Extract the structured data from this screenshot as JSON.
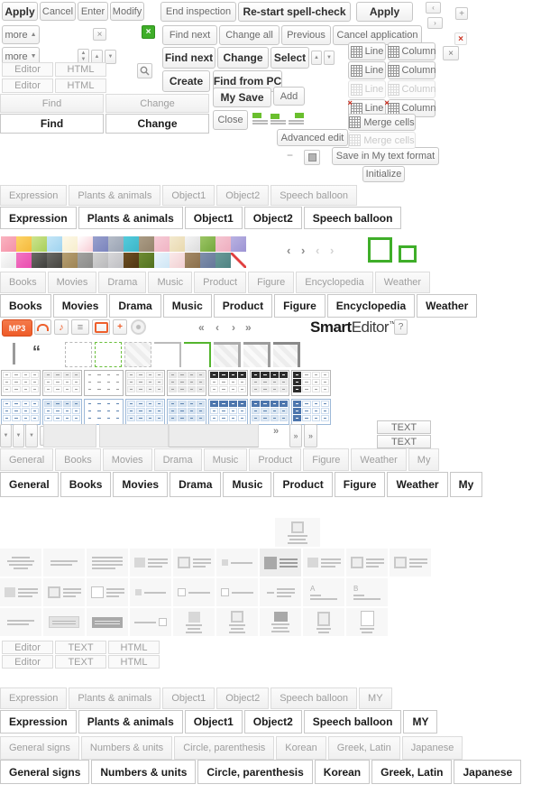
{
  "buttons": {
    "apply": "Apply",
    "cancel": "Cancel",
    "enter": "Enter",
    "modify": "Modify",
    "more": "more",
    "end_inspection": "End inspection",
    "restart_spellcheck": "Re-start spell-check",
    "find_next": "Find next",
    "change_all": "Change all",
    "previous": "Previous",
    "cancel_application": "Cancel application",
    "change": "Change",
    "select": "Select",
    "create": "Create",
    "find_from_pc": "Find from PC",
    "my_save": "My Save",
    "add": "Add",
    "close": "Close",
    "advanced_edit": "Advanced edit",
    "save_my_text": "Save in My text format",
    "initialize": "Initialize",
    "text": "TEXT"
  },
  "table_ops": {
    "line": "Line",
    "column": "Column",
    "merge": "Merge cells"
  },
  "editor_tabs": {
    "editor": "Editor",
    "html": "HTML",
    "text": "TEXT"
  },
  "find_change": {
    "items": [
      "Find",
      "Change"
    ]
  },
  "editor_text_html": {
    "items": [
      "Editor",
      "TEXT",
      "HTML"
    ]
  },
  "tabs_sticker": {
    "items": [
      "Expression",
      "Plants & animals",
      "Object1",
      "Object2",
      "Speech balloon"
    ]
  },
  "tabs_sticker_my": {
    "items": [
      "Expression",
      "Plants & animals",
      "Object1",
      "Object2",
      "Speech balloon",
      "MY"
    ]
  },
  "tabs_media": {
    "items": [
      "Books",
      "Movies",
      "Drama",
      "Music",
      "Product",
      "Figure",
      "Encyclopedia",
      "Weather"
    ]
  },
  "tabs_media_my": {
    "items": [
      "General",
      "Books",
      "Movies",
      "Drama",
      "Music",
      "Product",
      "Figure",
      "Weather",
      "My"
    ]
  },
  "tabs_chars": {
    "items": [
      "General signs",
      "Numbers & units",
      "Circle, parenthesis",
      "Korean",
      "Greek, Latin",
      "Japanese"
    ]
  },
  "logo": {
    "brand_bold": "Smart",
    "brand_rest": "Editor",
    "tm": "™",
    "help": "?"
  },
  "media_bar": {
    "mp3": "MP3"
  },
  "layout_labels": {
    "A": "A",
    "B": "B"
  },
  "icons": {
    "close_x": "×",
    "green_x": "×",
    "red_x": "×",
    "boxed_x": "×",
    "plus": "+",
    "minus": "−",
    "up": "▲",
    "down": "▼",
    "prev": "‹",
    "next": "›",
    "first": "«",
    "last": "»",
    "quote": "“"
  },
  "accent_colors": {
    "orange": "#ee5f2c",
    "green": "#3fae29",
    "red": "#cc3322",
    "blue": "#4d76ad"
  },
  "palette": {
    "row1": [
      {
        "a": "#f9b4c0",
        "b": "#f590a8"
      },
      {
        "a": "#fcd468",
        "b": "#f5b93c"
      },
      {
        "a": "#cde48f",
        "b": "#a8cf5a"
      },
      {
        "a": "#c5e6f7",
        "b": "#9fd3ef"
      },
      {
        "a": "#fdf8e8",
        "b": "#f7eecd"
      },
      {
        "a": "#ffffff",
        "b": "#f8ccd4"
      },
      {
        "a": "#98a0cd",
        "b": "#7b84bd"
      },
      {
        "a": "#b6bdc9",
        "b": "#9aa3b3"
      },
      {
        "a": "#53cbdc",
        "b": "#3db6c8"
      },
      {
        "a": "#ab9c85",
        "b": "#94846c"
      },
      {
        "a": "#f6ccd6",
        "b": "#f0b4c4"
      },
      {
        "a": "#f3e9cf",
        "b": "#e9d9ae"
      },
      {
        "a": "#f4f4f4",
        "b": "#dcdcdc"
      },
      {
        "a": "#9cc565",
        "b": "#74a83e"
      },
      {
        "a": "#f5c6d2",
        "b": "#eeaebf"
      },
      {
        "a": "#b9b2e2",
        "b": "#9d94d4"
      }
    ],
    "row2": [
      {
        "a": "#fbfbfb",
        "b": "#e6e6e6"
      },
      {
        "a": "#f277c3",
        "b": "#ea4caf"
      },
      {
        "a": "#6c6c68",
        "b": "#3f3f3c"
      },
      {
        "a": "#6a6a66",
        "b": "#45443f"
      },
      {
        "a": "#b7a072",
        "b": "#9d8455"
      },
      {
        "a": "#a3a3a1",
        "b": "#8b8b89"
      },
      {
        "a": "#d3d3d3",
        "b": "#b9b9bb"
      },
      {
        "a": "#d8d8da",
        "b": "#bfbfc3"
      },
      {
        "a": "#6f5024",
        "b": "#4e3612"
      },
      {
        "a": "#6f8c33",
        "b": "#51711f"
      },
      {
        "a": "#eaf4fb",
        "b": "#cfe6f5"
      },
      {
        "a": "#faeaea",
        "b": "#f2cfd2"
      },
      {
        "a": "#a58a67",
        "b": "#8a6f4c"
      },
      {
        "a": "#8090ab",
        "b": "#65779a"
      },
      {
        "a": "#6a9a99",
        "b": "#4f8483"
      },
      {
        "a": "#ffffff",
        "b": "#e03c3c",
        "t": "diag"
      }
    ]
  },
  "table_styles": {
    "gray": [
      "plain",
      "header-light",
      "lines",
      "cells-light",
      "cells-shade",
      "header-dark",
      "header-dark-shade",
      "firstcol-dark"
    ],
    "blue": [
      "plain",
      "header-light",
      "lines",
      "cells-light",
      "cells-shade",
      "header-dark",
      "header-dark-shade",
      "firstcol-dark"
    ]
  },
  "frame_styles": [
    "dashed",
    "dashed-green",
    "dashed-fill",
    "corner-thin",
    "corner-green",
    "fill-corner",
    "corner-thick",
    "corner-dark"
  ],
  "layout_grid": {
    "row1": [
      "t-lines-c",
      "t-lines2",
      "t-lines",
      "t-img-left",
      "t-img-left-b",
      "t-tiny-left",
      "t-img-left-dark",
      "t-img-left",
      "t-img-left-b",
      "t-img-left-b"
    ],
    "row2": [
      "t-img-left",
      "t-img-left-b",
      "t-img-left-o",
      "t-tiny-left",
      "t-tiny-left-b",
      "t-tiny-left-b",
      "t-dash",
      "t-label-A",
      "t-label-B",
      "t-blank"
    ],
    "row3": [
      "t-lines2",
      "t-box",
      "t-bar",
      "t-line-tiny",
      "t-img-top",
      "t-img-top-b",
      "t-img-top-dark",
      "t-img-tall",
      "t-img-tall-o",
      "t-blank"
    ]
  },
  "line_col_rows": [
    {
      "state": "normal"
    },
    {
      "state": "normal"
    },
    {
      "state": "disabled"
    },
    {
      "state": "delete"
    }
  ]
}
